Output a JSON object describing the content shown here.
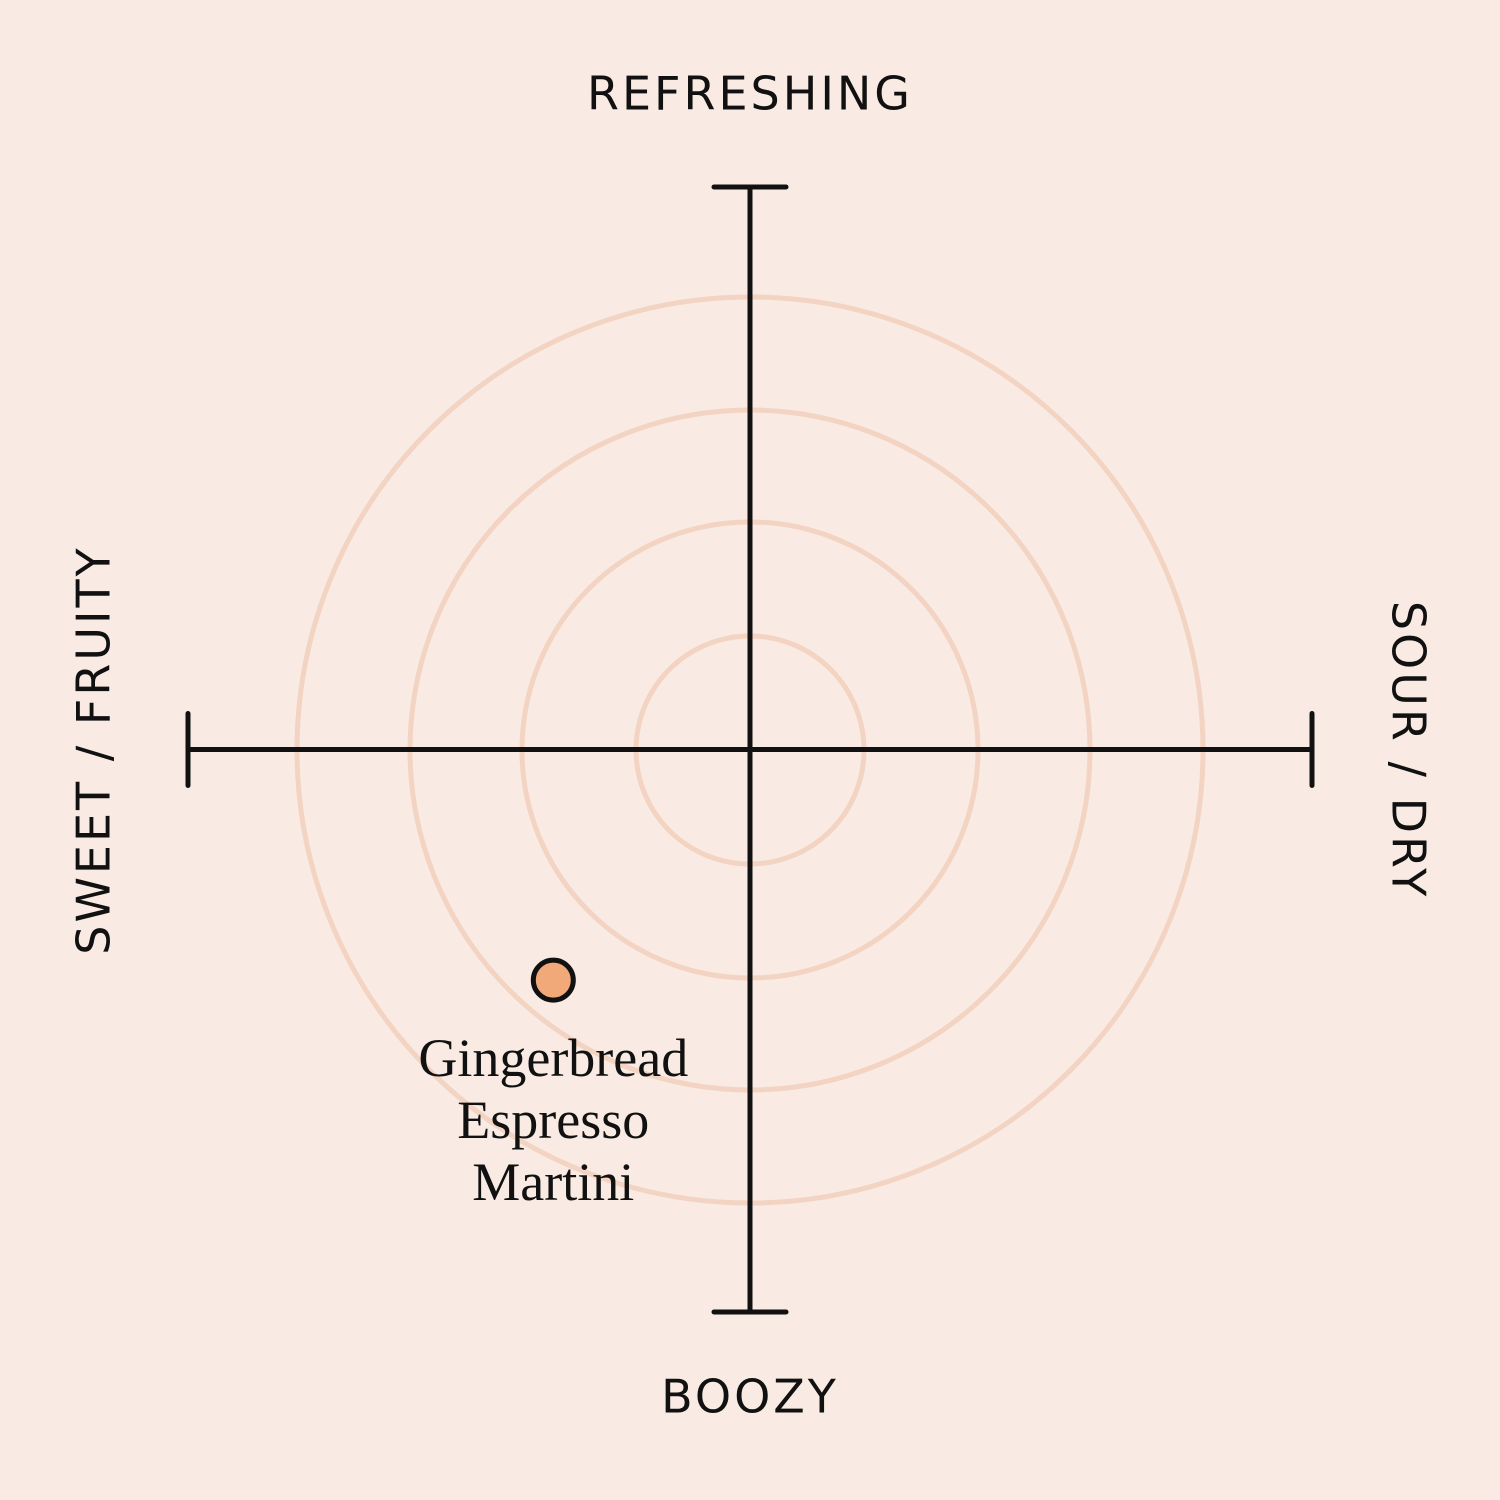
{
  "chart_data": {
    "type": "scatter",
    "axis_labels": {
      "top": "REFRESHING",
      "bottom": "BOOZY",
      "left": "SWEET / FRUITY",
      "right": "SOUR / DRY"
    },
    "xlim": [
      -1,
      1
    ],
    "ylim": [
      -1,
      1
    ],
    "series": [
      {
        "name": "Gingerbread Espresso Martini",
        "color": "#f2a97a",
        "x": [
          -0.35
        ],
        "values": [
          -0.41
        ]
      }
    ]
  }
}
